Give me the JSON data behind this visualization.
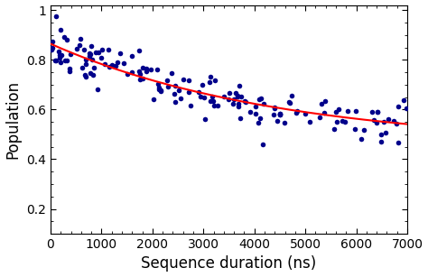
{
  "title": "",
  "xlabel": "Sequence duration (ns)",
  "ylabel": "Population",
  "xlim": [
    0,
    7000
  ],
  "ylim": [
    0.1,
    1.02
  ],
  "yticks": [
    0.2,
    0.4,
    0.6,
    0.8,
    1.0
  ],
  "ytick_labels": [
    "0.2",
    "0.4",
    "0.6",
    "0.8",
    "1"
  ],
  "xticks": [
    0,
    1000,
    2000,
    3000,
    4000,
    5000,
    6000,
    7000
  ],
  "dot_color": "#00008B",
  "fit_color": "#FF0000",
  "fit_A": 0.41,
  "fit_B": 0.455,
  "fit_tau": 4500,
  "scatter_seed": 7,
  "background_color": "#ffffff",
  "xlabel_fontsize": 12,
  "ylabel_fontsize": 12,
  "tick_labelsize": 10
}
